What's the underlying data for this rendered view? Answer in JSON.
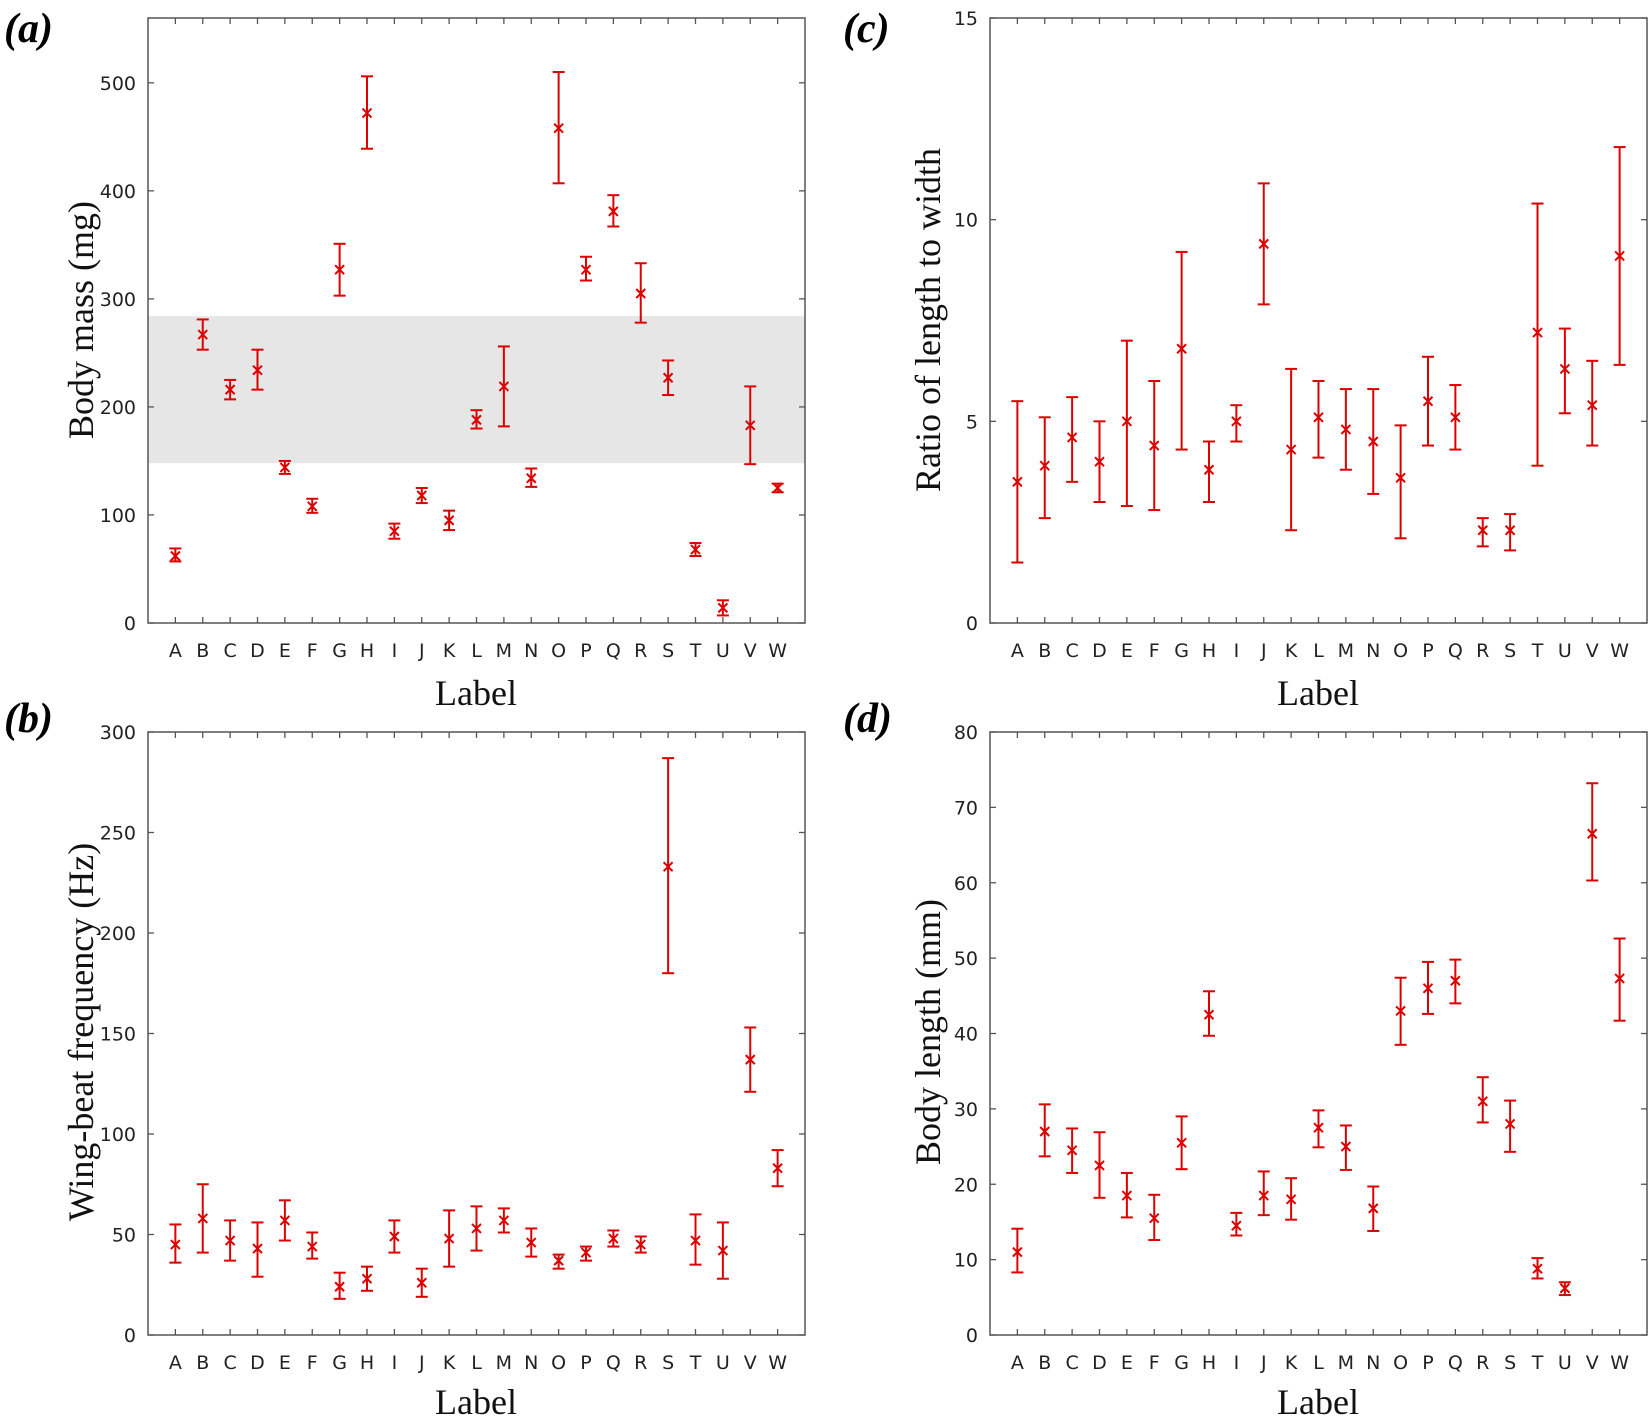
{
  "figure": {
    "style": {
      "marker_color": "#dd0000",
      "band_color": "#e6e6e6",
      "frame_color": "#555555"
    }
  },
  "chart_data": [
    {
      "panel": "(a)",
      "type": "scatter",
      "marker": "x",
      "error_bars": true,
      "categories": [
        "A",
        "B",
        "C",
        "D",
        "E",
        "F",
        "G",
        "H",
        "I",
        "J",
        "K",
        "L",
        "M",
        "N",
        "O",
        "P",
        "Q",
        "R",
        "S",
        "T",
        "U",
        "V",
        "W"
      ],
      "values": [
        62,
        267,
        216,
        234,
        144,
        108,
        327,
        472,
        85,
        118,
        95,
        188,
        219,
        134,
        458,
        327,
        381,
        305,
        227,
        68,
        14,
        183,
        125
      ],
      "err_low": [
        57,
        253,
        207,
        216,
        138,
        102,
        303,
        439,
        78,
        111,
        86,
        180,
        182,
        126,
        407,
        317,
        367,
        278,
        211,
        62,
        7,
        147,
        121
      ],
      "err_high": [
        69,
        281,
        225,
        253,
        150,
        115,
        351,
        506,
        92,
        125,
        104,
        197,
        256,
        143,
        510,
        339,
        396,
        333,
        243,
        74,
        21,
        219,
        129
      ],
      "shaded_band": [
        148,
        284
      ],
      "xlabel": "Label",
      "ylabel": "Body mass (mg)",
      "ylim": [
        0,
        560
      ],
      "yticks": [
        0,
        100,
        200,
        300,
        400,
        500
      ]
    },
    {
      "panel": "(b)",
      "type": "scatter",
      "marker": "x",
      "error_bars": true,
      "categories": [
        "A",
        "B",
        "C",
        "D",
        "E",
        "F",
        "G",
        "H",
        "I",
        "J",
        "K",
        "L",
        "M",
        "N",
        "O",
        "P",
        "Q",
        "R",
        "S",
        "T",
        "U",
        "V",
        "W"
      ],
      "values": [
        45,
        58,
        47,
        43,
        57,
        44,
        24,
        28,
        49,
        26,
        48,
        53,
        57,
        46,
        37,
        41,
        48,
        45,
        233,
        47,
        42,
        137,
        83
      ],
      "err_low": [
        36,
        41,
        37,
        29,
        47,
        38,
        18,
        22,
        41,
        19,
        34,
        42,
        51,
        39,
        33,
        37,
        44,
        41,
        180,
        35,
        28,
        121,
        74
      ],
      "err_high": [
        55,
        75,
        57,
        56,
        67,
        51,
        31,
        34,
        57,
        33,
        62,
        64,
        63,
        53,
        40,
        44,
        52,
        49,
        287,
        60,
        56,
        153,
        92
      ],
      "xlabel": "Label",
      "ylabel": "Wing-beat frequency (Hz)",
      "ylim": [
        0,
        300
      ],
      "yticks": [
        0,
        50,
        100,
        150,
        200,
        250,
        300
      ]
    },
    {
      "panel": "(c)",
      "type": "scatter",
      "marker": "x",
      "error_bars": true,
      "categories": [
        "A",
        "B",
        "C",
        "D",
        "E",
        "F",
        "G",
        "H",
        "I",
        "J",
        "K",
        "L",
        "M",
        "N",
        "O",
        "P",
        "Q",
        "R",
        "S",
        "T",
        "U",
        "V",
        "W"
      ],
      "values": [
        3.5,
        3.9,
        4.6,
        4.0,
        5.0,
        4.4,
        6.8,
        3.8,
        5.0,
        9.4,
        4.3,
        5.1,
        4.8,
        4.5,
        3.6,
        5.5,
        5.1,
        2.3,
        2.3,
        7.2,
        6.3,
        5.4,
        9.1
      ],
      "err_low": [
        1.5,
        2.6,
        3.5,
        3.0,
        2.9,
        2.8,
        4.3,
        3.0,
        4.5,
        7.9,
        2.3,
        4.1,
        3.8,
        3.2,
        2.1,
        4.4,
        4.3,
        1.9,
        1.8,
        3.9,
        5.2,
        4.4,
        6.4
      ],
      "err_high": [
        5.5,
        5.1,
        5.6,
        5.0,
        7.0,
        6.0,
        9.2,
        4.5,
        5.4,
        10.9,
        6.3,
        6.0,
        5.8,
        5.8,
        4.9,
        6.6,
        5.9,
        2.6,
        2.7,
        10.4,
        7.3,
        6.5,
        11.8
      ],
      "xlabel": "Label",
      "ylabel": "Ratio of length to width",
      "ylim": [
        0,
        15
      ],
      "yticks": [
        0,
        5,
        10,
        15
      ]
    },
    {
      "panel": "(d)",
      "type": "scatter",
      "marker": "x",
      "error_bars": true,
      "categories": [
        "A",
        "B",
        "C",
        "D",
        "E",
        "F",
        "G",
        "H",
        "I",
        "J",
        "K",
        "L",
        "M",
        "N",
        "O",
        "P",
        "Q",
        "R",
        "S",
        "T",
        "U",
        "V",
        "W"
      ],
      "values": [
        11,
        27,
        24.5,
        22.5,
        18.5,
        15.5,
        25.5,
        42.5,
        14.5,
        18.5,
        18,
        27.5,
        25,
        16.8,
        43,
        46,
        47,
        31,
        28,
        8.8,
        6.2,
        66.5,
        47.3
      ],
      "err_low": [
        8.3,
        23.7,
        21.5,
        18.2,
        15.6,
        12.6,
        22,
        39.7,
        13.2,
        15.9,
        15.3,
        24.9,
        21.9,
        13.8,
        38.5,
        42.6,
        44,
        28.2,
        24.3,
        7.5,
        5.3,
        60.3,
        41.7
      ],
      "err_high": [
        14.1,
        30.6,
        27.4,
        26.9,
        21.5,
        18.6,
        29,
        45.6,
        16.2,
        21.7,
        20.8,
        29.8,
        27.8,
        19.7,
        47.4,
        49.5,
        49.8,
        34.2,
        31.1,
        10.2,
        7,
        73.2,
        52.6
      ],
      "xlabel": "Label",
      "ylabel": "Body length (mm)",
      "ylim": [
        0,
        80
      ],
      "yticks": [
        0,
        10,
        20,
        30,
        40,
        50,
        60,
        70,
        80
      ]
    }
  ]
}
